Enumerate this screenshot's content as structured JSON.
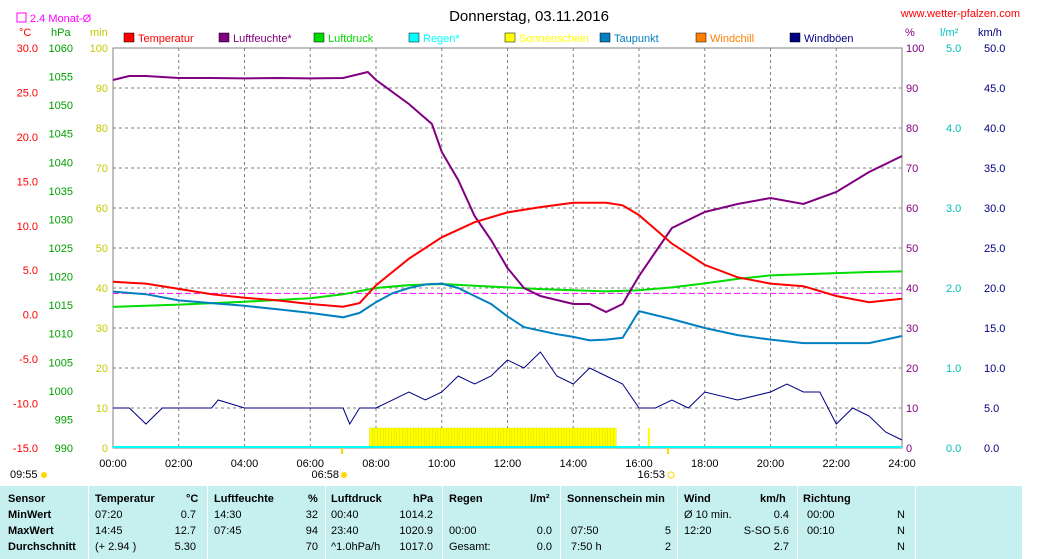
{
  "header": {
    "title": "Donnerstag, 03.11.2016",
    "site": "www.wetter-pfalzen.com",
    "avg_label": "2.4 Monat-Ø",
    "units_left": [
      "°C",
      "hPa",
      "min"
    ],
    "units_right": [
      "%",
      "l/m²",
      "km/h"
    ]
  },
  "colors": {
    "temperature": "#ff0000",
    "humidity": "#800080",
    "pressure": "#00dd00",
    "rain": "#00ffff",
    "sunshine": "#ffff00",
    "dewpoint": "#0080c0",
    "windchill": "#ff8000",
    "gust": "#000080",
    "avg_line": "#ff00ff",
    "grid": "#808080",
    "table_bg": "#c6f0f0"
  },
  "legend": [
    "Temperatur",
    "Luftfeuchte*",
    "Luftdruck",
    "Regen*",
    "Sonnenschein",
    "Taupunkt",
    "Windchill",
    "Windböen"
  ],
  "sun": {
    "sunrise": "06:58",
    "sunset": "16:53",
    "daylight": "09:55"
  },
  "chart_data": {
    "type": "line",
    "x_ticks": [
      "00:00",
      "02:00",
      "04:00",
      "06:00",
      "08:00",
      "10:00",
      "12:00",
      "14:00",
      "16:00",
      "18:00",
      "20:00",
      "22:00",
      "24:00"
    ],
    "axes": {
      "temperature_c": {
        "range": [
          -15,
          30
        ],
        "ticks": [
          "30.0",
          "25.0",
          "20.0",
          "15.0",
          "10.0",
          "5.0",
          "0.0",
          "-5.0",
          "-10.0",
          "-15.0"
        ]
      },
      "pressure_hpa": {
        "range": [
          990,
          1060
        ],
        "ticks": [
          "1060",
          "1055",
          "1050",
          "1045",
          "1040",
          "1035",
          "1030",
          "1025",
          "1020",
          "1015",
          "1010",
          "1005",
          "1000",
          "995",
          "990"
        ]
      },
      "sunshine_min": {
        "range": [
          0,
          100
        ],
        "ticks": [
          "100",
          "90",
          "80",
          "70",
          "60",
          "50",
          "40",
          "30",
          "20",
          "10",
          "0"
        ]
      },
      "humidity_pct": {
        "range": [
          0,
          100
        ],
        "ticks": [
          "100",
          "90",
          "80",
          "70",
          "60",
          "50",
          "40",
          "30",
          "20",
          "10",
          "0"
        ]
      },
      "rain_lm2": {
        "range": [
          0,
          5
        ],
        "ticks": [
          "5.0",
          "4.0",
          "3.0",
          "2.0",
          "1.0",
          "0.0"
        ]
      },
      "wind_kmh": {
        "range": [
          0,
          50
        ],
        "ticks": [
          "50.0",
          "45.0",
          "40.0",
          "35.0",
          "30.0",
          "25.0",
          "20.0",
          "15.0",
          "10.0",
          "5.0",
          "0.0"
        ]
      }
    },
    "series": [
      {
        "name": "Temperatur",
        "unit": "°C",
        "x": [
          0,
          1,
          2,
          3,
          4,
          5,
          6,
          7,
          7.5,
          8,
          9,
          10,
          11,
          12,
          13,
          14,
          15,
          15.5,
          16,
          17,
          18,
          19,
          20,
          21,
          22,
          23,
          24
        ],
        "y": [
          3.7,
          3.5,
          2.9,
          2.3,
          1.9,
          1.6,
          1.2,
          0.9,
          1.3,
          3.3,
          6.3,
          8.7,
          10.4,
          11.5,
          12.1,
          12.6,
          12.6,
          12.3,
          11.2,
          8.0,
          5.6,
          4.2,
          3.5,
          3.2,
          2.1,
          1.4,
          1.8
        ]
      },
      {
        "name": "Luftfeuchte*",
        "unit": "%",
        "x": [
          0,
          0.5,
          1,
          2,
          3,
          4,
          5,
          6,
          7,
          7.5,
          7.75,
          8,
          9,
          9.7,
          10,
          10.5,
          11,
          11.5,
          12,
          12.5,
          13,
          13.5,
          14,
          14.5,
          15,
          15.5,
          16,
          16.5,
          17,
          18,
          19,
          20,
          21,
          22,
          23,
          24
        ],
        "y": [
          92,
          93,
          93,
          92.5,
          92.5,
          92.4,
          92.5,
          92.4,
          92.5,
          93.5,
          94,
          92,
          86,
          81,
          74,
          67,
          58,
          52,
          45,
          40,
          38,
          37,
          36,
          36,
          34,
          36,
          43,
          49,
          55,
          59,
          61,
          62.5,
          61,
          64,
          69,
          73
        ]
      },
      {
        "name": "Luftdruck",
        "unit": "hPa",
        "x": [
          0,
          2,
          4,
          6,
          7,
          8,
          9,
          10,
          11,
          12,
          13,
          14,
          15,
          16,
          17,
          18,
          19,
          20,
          21,
          22,
          23,
          24
        ],
        "y": [
          1014.7,
          1015.1,
          1015.6,
          1016.2,
          1016.9,
          1018.0,
          1018.5,
          1018.7,
          1018.4,
          1018.1,
          1017.8,
          1017.6,
          1017.4,
          1017.6,
          1018.1,
          1018.8,
          1019.6,
          1020.2,
          1020.4,
          1020.6,
          1020.8,
          1020.9
        ]
      },
      {
        "name": "Taupunkt",
        "unit": "°C",
        "x": [
          0,
          1,
          2,
          3,
          4,
          5,
          6,
          7,
          7.5,
          8,
          8.5,
          9,
          9.5,
          10,
          10.5,
          11,
          11.5,
          12,
          12.5,
          13,
          13.5,
          14,
          14.5,
          15,
          15.5,
          16,
          17,
          18,
          19,
          20,
          21,
          22,
          23,
          24
        ],
        "y": [
          2.6,
          2.3,
          1.6,
          1.3,
          1.0,
          0.6,
          0.2,
          -0.3,
          0.2,
          1.4,
          2.4,
          3.0,
          3.4,
          3.5,
          3.0,
          2.1,
          1.2,
          -0.2,
          -1.4,
          -1.8,
          -2.2,
          -2.5,
          -2.9,
          -2.8,
          -2.6,
          0.4,
          -0.5,
          -1.5,
          -2.3,
          -2.8,
          -3.2,
          -3.2,
          -3.2,
          -2.4
        ]
      },
      {
        "name": "Windböen",
        "unit": "km/h",
        "x": [
          0,
          0.5,
          1,
          1.5,
          2,
          3,
          3.2,
          4,
          5,
          5.5,
          6,
          6.5,
          7,
          7.2,
          7.5,
          8,
          9,
          9.5,
          10,
          10.5,
          11,
          11.5,
          12,
          12.5,
          13,
          13.5,
          14,
          14.5,
          15,
          15.5,
          16,
          16.5,
          17,
          17.5,
          18,
          19,
          20,
          20.5,
          21,
          21.5,
          22,
          22.5,
          23,
          23.5,
          24
        ],
        "y": [
          5,
          5,
          3,
          5,
          5,
          5,
          6,
          5,
          5,
          5,
          5,
          5,
          5,
          3,
          5,
          5,
          7,
          6,
          7,
          9,
          8,
          9,
          11,
          10,
          12,
          9,
          8,
          10,
          9,
          8,
          5,
          5,
          6,
          5,
          7,
          6,
          7,
          8,
          7,
          7,
          3,
          5,
          4,
          2,
          1
        ]
      },
      {
        "name": "Sonnenschein",
        "unit": "min",
        "x": [
          7.8,
          15.3
        ],
        "y": [
          5,
          5
        ]
      },
      {
        "name": "Monat-Ø Temperatur",
        "unit": "°C",
        "x": [
          0,
          24
        ],
        "y": [
          2.4,
          2.4
        ]
      }
    ]
  },
  "table": {
    "headers": [
      "Sensor",
      "Temperatur",
      "°C",
      "Luftfeuchte",
      "%",
      "Luftdruck",
      "hPa",
      "Regen",
      "l/m²",
      "Sonnenschein min",
      "Wind",
      "km/h",
      "Richtung"
    ],
    "rows": [
      {
        "label": "MinWert",
        "c": [
          "07:20",
          "0.7",
          "14:30",
          "32",
          "00:40",
          "1014.2",
          "",
          "",
          "",
          "",
          "Ø 10 min.",
          "0.4",
          "00:00",
          "N"
        ]
      },
      {
        "label": "MaxWert",
        "c": [
          "14:45",
          "12.7",
          "07:45",
          "94",
          "23:40",
          "1020.9",
          "00:00",
          "0.0",
          "07:50",
          "5",
          "12:20",
          "S-SO 5.6",
          "00:10",
          "N"
        ]
      },
      {
        "label": "Durchschnitt",
        "c": [
          "(+ 2.94 )",
          "5.30",
          "",
          "70",
          "^1.0hPa/h",
          "1017.0",
          "Gesamt:",
          "0.0",
          "7:50 h",
          "2",
          "",
          "2.7",
          "",
          "N"
        ]
      }
    ]
  }
}
